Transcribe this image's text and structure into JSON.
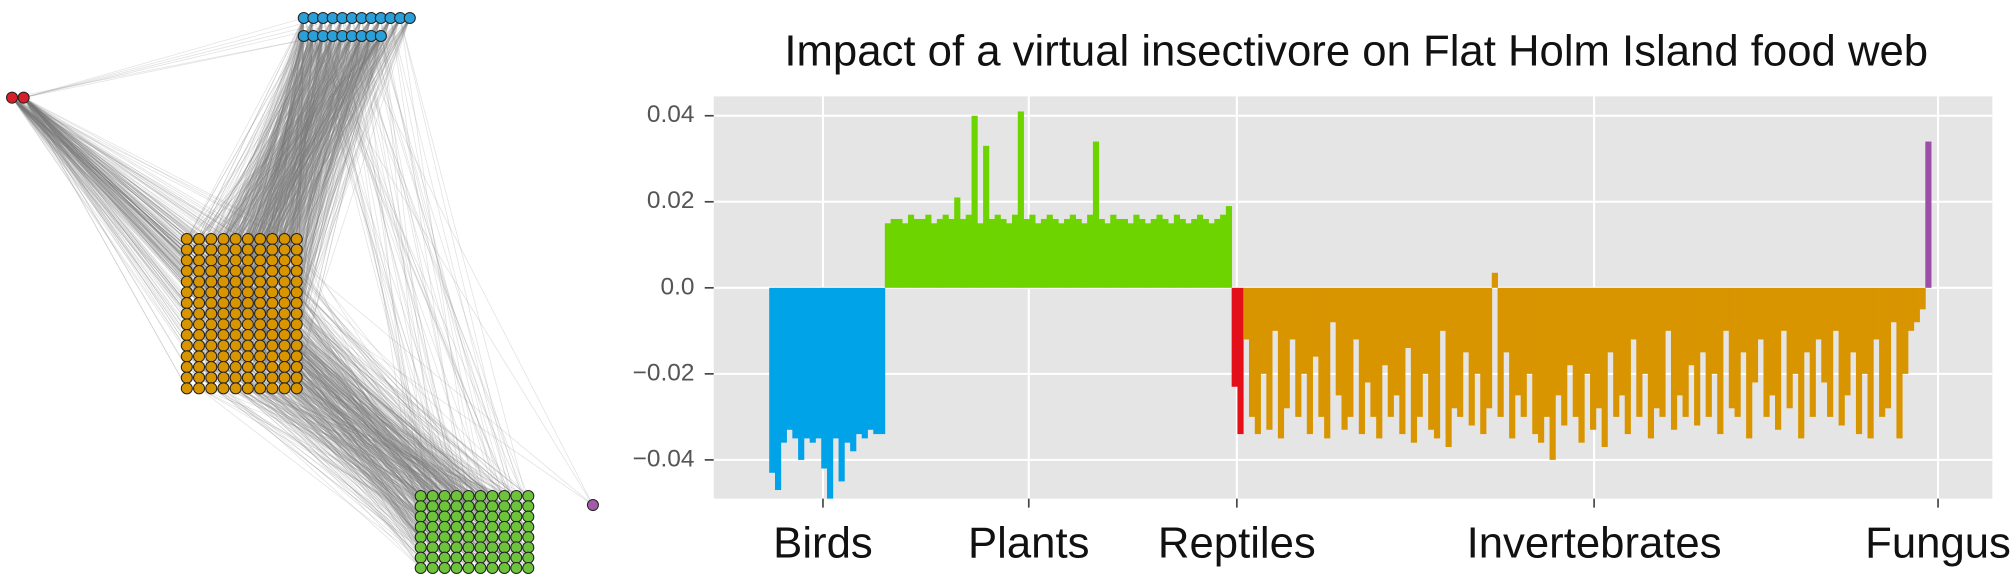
{
  "chart_data": {
    "type": "bar",
    "title": "Impact of a virtual insectivore on Flat Holm Island food web",
    "series": [
      {
        "name": "Birds",
        "color": "#00a2e8",
        "values": [
          -0.043,
          -0.047,
          -0.036,
          -0.033,
          -0.035,
          -0.04,
          -0.035,
          -0.036,
          -0.035,
          -0.042,
          -0.049,
          -0.035,
          -0.045,
          -0.036,
          -0.038,
          -0.034,
          -0.035,
          -0.033,
          -0.034,
          -0.034
        ]
      },
      {
        "name": "Plants",
        "color": "#6dd400",
        "values": [
          0.015,
          0.016,
          0.016,
          0.015,
          0.017,
          0.016,
          0.016,
          0.017,
          0.015,
          0.016,
          0.017,
          0.016,
          0.021,
          0.016,
          0.017,
          0.04,
          0.015,
          0.033,
          0.016,
          0.017,
          0.016,
          0.015,
          0.017,
          0.041,
          0.016,
          0.017,
          0.015,
          0.016,
          0.017,
          0.016,
          0.015,
          0.016,
          0.017,
          0.016,
          0.015,
          0.017,
          0.034,
          0.016,
          0.015,
          0.017,
          0.016,
          0.016,
          0.015,
          0.017,
          0.016,
          0.015,
          0.016,
          0.017,
          0.016,
          0.015,
          0.017,
          0.016,
          0.015,
          0.016,
          0.017,
          0.016,
          0.015,
          0.016,
          0.017,
          0.019
        ]
      },
      {
        "name": "Reptiles",
        "color": "#e3101a",
        "values": [
          -0.023,
          -0.034
        ]
      },
      {
        "name": "Invertebrates",
        "color": "#d89500",
        "values": [
          -0.012,
          -0.03,
          -0.034,
          -0.02,
          -0.033,
          -0.01,
          -0.035,
          -0.028,
          -0.012,
          -0.03,
          -0.02,
          -0.034,
          -0.016,
          -0.03,
          -0.035,
          -0.008,
          -0.025,
          -0.033,
          -0.03,
          -0.012,
          -0.034,
          -0.022,
          -0.03,
          -0.035,
          -0.018,
          -0.03,
          -0.025,
          -0.034,
          -0.014,
          -0.036,
          -0.03,
          -0.02,
          -0.033,
          -0.035,
          -0.01,
          -0.037,
          -0.028,
          -0.03,
          -0.015,
          -0.032,
          -0.02,
          -0.034,
          -0.028,
          0.0035,
          -0.03,
          -0.015,
          -0.035,
          -0.025,
          -0.03,
          -0.02,
          -0.034,
          -0.036,
          -0.03,
          -0.04,
          -0.025,
          -0.032,
          -0.018,
          -0.03,
          -0.036,
          -0.02,
          -0.033,
          -0.028,
          -0.037,
          -0.015,
          -0.03,
          -0.025,
          -0.034,
          -0.012,
          -0.03,
          -0.02,
          -0.035,
          -0.028,
          -0.03,
          -0.01,
          -0.033,
          -0.025,
          -0.03,
          -0.018,
          -0.032,
          -0.015,
          -0.03,
          -0.02,
          -0.034,
          -0.01,
          -0.028,
          -0.03,
          -0.015,
          -0.035,
          -0.022,
          -0.012,
          -0.03,
          -0.025,
          -0.033,
          -0.01,
          -0.028,
          -0.02,
          -0.035,
          -0.015,
          -0.03,
          -0.012,
          -0.022,
          -0.03,
          -0.01,
          -0.032,
          -0.025,
          -0.015,
          -0.034,
          -0.02,
          -0.035,
          -0.012,
          -0.03,
          -0.028,
          -0.008,
          -0.035,
          -0.02,
          -0.01,
          -0.008,
          -0.005
        ]
      },
      {
        "name": "Fungus",
        "color": "#9b4fa8",
        "values": [
          0.034
        ]
      }
    ],
    "xlim": [
      -9.6,
      211.6
    ],
    "xticks": [
      {
        "value": 9.3,
        "label": "Birds"
      },
      {
        "value": 44.9,
        "label": "Plants"
      },
      {
        "value": 80.9,
        "label": "Reptiles"
      },
      {
        "value": 142.7,
        "label": "Invertebrates"
      },
      {
        "value": 202.2,
        "label": "Fungus"
      }
    ],
    "ylim": [
      -0.049,
      0.0445
    ],
    "yticks": [
      {
        "value": -0.04,
        "label": "−0.04"
      },
      {
        "value": -0.02,
        "label": "−0.02"
      },
      {
        "value": 0,
        "label": "0.0"
      },
      0.02,
      0.04
    ],
    "grid": true
  }
}
